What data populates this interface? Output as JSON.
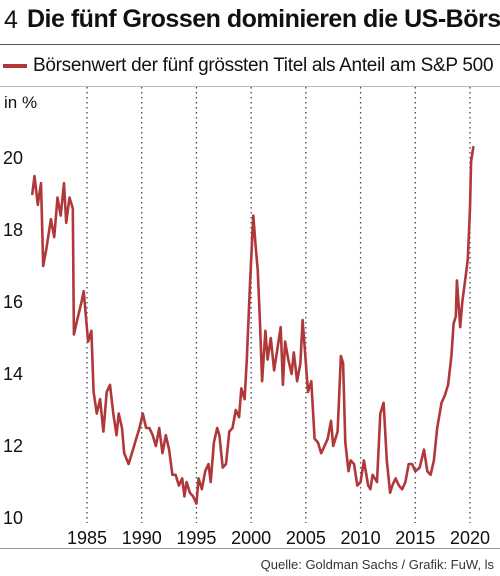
{
  "figure_number": "4",
  "title": "Die fünf Grossen dominieren die US-Börse",
  "source": "Quelle: Goldman Sachs / Grafik: FuW, ls",
  "colors": {
    "series": "#b0383a",
    "grid": "#444444"
  },
  "chart_data": {
    "type": "line",
    "ylabel": "in %",
    "ylim": [
      10,
      20.6
    ],
    "xlim": [
      1978.5,
      2021.5
    ],
    "yticks": [
      10,
      12,
      14,
      16,
      18,
      20
    ],
    "xticks": [
      1985,
      1990,
      1995,
      2000,
      2005,
      2010,
      2015,
      2020
    ],
    "grid": "vertical dotted",
    "legend_position": "top",
    "series": [
      {
        "name": "Börsenwert der fünf grössten Titel als Anteil am S&P 500",
        "points": [
          [
            1980.0,
            19.0
          ],
          [
            1980.2,
            19.5
          ],
          [
            1980.5,
            18.7
          ],
          [
            1980.8,
            19.3
          ],
          [
            1981.0,
            17.0
          ],
          [
            1981.3,
            17.5
          ],
          [
            1981.7,
            18.3
          ],
          [
            1982.0,
            17.8
          ],
          [
            1982.3,
            18.9
          ],
          [
            1982.6,
            18.4
          ],
          [
            1982.9,
            19.3
          ],
          [
            1983.1,
            18.2
          ],
          [
            1983.4,
            18.9
          ],
          [
            1983.7,
            18.6
          ],
          [
            1983.8,
            15.1
          ],
          [
            1984.1,
            15.5
          ],
          [
            1984.5,
            16.0
          ],
          [
            1984.7,
            16.3
          ],
          [
            1985.1,
            14.9
          ],
          [
            1985.4,
            15.2
          ],
          [
            1985.6,
            13.5
          ],
          [
            1985.9,
            12.9
          ],
          [
            1986.2,
            13.3
          ],
          [
            1986.5,
            12.4
          ],
          [
            1986.8,
            13.5
          ],
          [
            1987.1,
            13.7
          ],
          [
            1987.4,
            12.9
          ],
          [
            1987.7,
            12.3
          ],
          [
            1987.9,
            12.9
          ],
          [
            1988.2,
            12.5
          ],
          [
            1988.4,
            11.8
          ],
          [
            1988.8,
            11.5
          ],
          [
            1989.1,
            11.8
          ],
          [
            1989.5,
            12.2
          ],
          [
            1989.8,
            12.5
          ],
          [
            1990.1,
            12.9
          ],
          [
            1990.4,
            12.5
          ],
          [
            1990.7,
            12.5
          ],
          [
            1991.0,
            12.3
          ],
          [
            1991.3,
            12.0
          ],
          [
            1991.6,
            12.5
          ],
          [
            1991.9,
            11.8
          ],
          [
            1992.2,
            12.3
          ],
          [
            1992.5,
            11.9
          ],
          [
            1992.8,
            11.2
          ],
          [
            1993.1,
            11.2
          ],
          [
            1993.4,
            10.9
          ],
          [
            1993.7,
            11.1
          ],
          [
            1993.9,
            10.6
          ],
          [
            1994.1,
            11.0
          ],
          [
            1994.4,
            10.7
          ],
          [
            1994.7,
            10.6
          ],
          [
            1995.0,
            10.4
          ],
          [
            1995.2,
            11.1
          ],
          [
            1995.5,
            10.8
          ],
          [
            1995.8,
            11.3
          ],
          [
            1996.1,
            11.5
          ],
          [
            1996.3,
            11.0
          ],
          [
            1996.6,
            12.1
          ],
          [
            1996.9,
            12.5
          ],
          [
            1997.1,
            12.3
          ],
          [
            1997.4,
            11.4
          ],
          [
            1997.7,
            11.5
          ],
          [
            1998.0,
            12.4
          ],
          [
            1998.3,
            12.5
          ],
          [
            1998.6,
            13.0
          ],
          [
            1998.9,
            12.8
          ],
          [
            1999.1,
            13.6
          ],
          [
            1999.4,
            13.3
          ],
          [
            1999.6,
            14.4
          ],
          [
            1999.9,
            16.5
          ],
          [
            2000.2,
            18.4
          ],
          [
            2000.4,
            17.6
          ],
          [
            2000.6,
            16.9
          ],
          [
            2000.8,
            15.5
          ],
          [
            2001.0,
            13.8
          ],
          [
            2001.3,
            15.2
          ],
          [
            2001.5,
            14.4
          ],
          [
            2001.8,
            15.0
          ],
          [
            2002.1,
            14.1
          ],
          [
            2002.4,
            14.7
          ],
          [
            2002.7,
            15.3
          ],
          [
            2002.9,
            13.7
          ],
          [
            2003.1,
            14.9
          ],
          [
            2003.4,
            14.4
          ],
          [
            2003.7,
            14.0
          ],
          [
            2003.9,
            14.6
          ],
          [
            2004.2,
            13.8
          ],
          [
            2004.5,
            14.3
          ],
          [
            2004.7,
            15.5
          ],
          [
            2004.9,
            14.7
          ],
          [
            2005.2,
            13.5
          ],
          [
            2005.5,
            13.8
          ],
          [
            2005.8,
            12.2
          ],
          [
            2006.1,
            12.1
          ],
          [
            2006.4,
            11.8
          ],
          [
            2006.7,
            12.0
          ],
          [
            2007.0,
            12.2
          ],
          [
            2007.3,
            12.7
          ],
          [
            2007.5,
            12.0
          ],
          [
            2007.9,
            12.4
          ],
          [
            2008.2,
            14.5
          ],
          [
            2008.4,
            14.3
          ],
          [
            2008.6,
            12.1
          ],
          [
            2008.9,
            11.3
          ],
          [
            2009.1,
            11.6
          ],
          [
            2009.4,
            11.5
          ],
          [
            2009.7,
            10.9
          ],
          [
            2010.0,
            11.0
          ],
          [
            2010.3,
            11.6
          ],
          [
            2010.7,
            10.9
          ],
          [
            2010.9,
            10.8
          ],
          [
            2011.1,
            11.2
          ],
          [
            2011.5,
            11.0
          ],
          [
            2011.8,
            12.9
          ],
          [
            2012.1,
            13.2
          ],
          [
            2012.4,
            11.6
          ],
          [
            2012.7,
            10.7
          ],
          [
            2012.9,
            10.9
          ],
          [
            2013.2,
            11.1
          ],
          [
            2013.5,
            10.9
          ],
          [
            2013.8,
            10.8
          ],
          [
            2014.1,
            11.0
          ],
          [
            2014.4,
            11.5
          ],
          [
            2014.7,
            11.5
          ],
          [
            2015.0,
            11.3
          ],
          [
            2015.4,
            11.4
          ],
          [
            2015.8,
            11.9
          ],
          [
            2016.1,
            11.3
          ],
          [
            2016.4,
            11.2
          ],
          [
            2016.7,
            11.6
          ],
          [
            2017.0,
            12.5
          ],
          [
            2017.4,
            13.2
          ],
          [
            2017.7,
            13.4
          ],
          [
            2018.0,
            13.7
          ],
          [
            2018.3,
            14.5
          ],
          [
            2018.5,
            15.4
          ],
          [
            2018.7,
            15.6
          ],
          [
            2018.8,
            16.6
          ],
          [
            2019.1,
            15.3
          ],
          [
            2019.3,
            16.0
          ],
          [
            2019.6,
            16.7
          ],
          [
            2019.8,
            17.2
          ],
          [
            2020.0,
            18.6
          ],
          [
            2020.1,
            19.9
          ],
          [
            2020.3,
            20.3
          ]
        ]
      }
    ]
  }
}
